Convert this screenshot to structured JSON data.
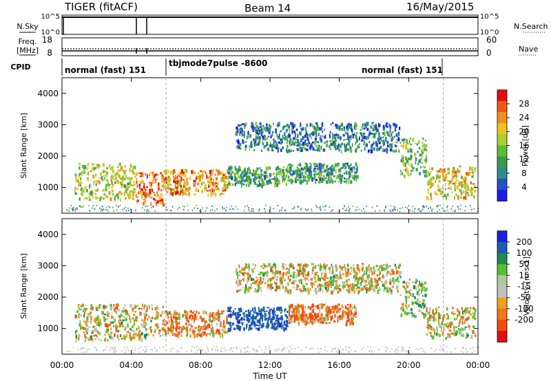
{
  "header": {
    "station": "TIGER (fitACF)",
    "beam": "Beam 14",
    "date": "16/May/2015"
  },
  "top_panels": {
    "nsky_label": "N.Sky",
    "nsky_ticks": [
      "10^5",
      "10^0"
    ],
    "nsearch_label": "N.Search",
    "nsearch_ticks": [
      "10^5",
      "10^0"
    ],
    "freq_label": "Freq.",
    "freq_unit": "[MHz]",
    "freq_ticks": [
      "18",
      "8"
    ],
    "nave_label": "Nave",
    "nave_ticks": [
      "60",
      "0"
    ],
    "cpid_label": "CPID",
    "cpid_segments": [
      {
        "label": "normal (fast) 151",
        "start_hour": 0,
        "end_hour": 6
      },
      {
        "label": "tbjmode7pulse -8600",
        "start_hour": 6,
        "end_hour": 22
      },
      {
        "label": "normal (fast) 151",
        "start_hour": 22,
        "end_hour": 24
      }
    ]
  },
  "colors": {
    "power_scale": [
      "#1e1ee6",
      "#2850c8",
      "#2e8c8c",
      "#3a9c4a",
      "#5cbb3a",
      "#a8d030",
      "#f0c020",
      "#f09020",
      "#f05a10",
      "#e01010"
    ],
    "velocity_scale": [
      "#1e1ee6",
      "#1e5ab4",
      "#1e8a50",
      "#55c030",
      "#b0c8a0",
      "#c0c0c0",
      "#f0a020",
      "#f07818",
      "#f04a10",
      "#e01010"
    ],
    "ground_scatter": "#bbbbbb"
  },
  "chart_data": [
    {
      "type": "heatmap",
      "name": "power",
      "ylabel": "Slant Range [km]",
      "yticks": [
        1000,
        2000,
        3000,
        4000
      ],
      "ylim": [
        180,
        4500
      ],
      "xlim": [
        0,
        24
      ],
      "colorbar_label": "Power [dB]",
      "colorbar_ticks": [
        4,
        8,
        12,
        16,
        20,
        24,
        28
      ],
      "colorbar_range": [
        0,
        32
      ],
      "scatter_regions": [
        {
          "t0": 0.7,
          "t1": 4.2,
          "r0": 650,
          "r1": 1800,
          "level": 18
        },
        {
          "t0": 4.2,
          "t1": 5.8,
          "r0": 500,
          "r1": 1500,
          "level": 26
        },
        {
          "t0": 5.8,
          "t1": 9.5,
          "r0": 800,
          "r1": 1600,
          "level": 24
        },
        {
          "t0": 9.5,
          "t1": 13.0,
          "r0": 1100,
          "r1": 1700,
          "level": 12
        },
        {
          "t0": 13.0,
          "t1": 17.0,
          "r0": 1200,
          "r1": 1800,
          "level": 10
        },
        {
          "t0": 10.0,
          "t1": 19.5,
          "r0": 2200,
          "r1": 3100,
          "level": 8
        },
        {
          "t0": 19.5,
          "t1": 21.0,
          "r0": 1400,
          "r1": 2600,
          "level": 14
        },
        {
          "t0": 21.0,
          "t1": 23.8,
          "r0": 700,
          "r1": 1700,
          "level": 20
        }
      ]
    },
    {
      "type": "heatmap",
      "name": "velocity",
      "ylabel": "Slant Range [km]",
      "yticks": [
        1000,
        2000,
        3000,
        4000
      ],
      "ylim": [
        180,
        4500
      ],
      "xlim": [
        0,
        24
      ],
      "colorbar_label": "Velocity [m s-1]",
      "colorbar_ticks": [
        200,
        100,
        50,
        15,
        -15,
        -50,
        -100,
        -200
      ],
      "scatter_regions": [
        {
          "t0": 0.7,
          "t1": 5.8,
          "r0": 650,
          "r1": 1800,
          "vel": 0
        },
        {
          "t0": 5.8,
          "t1": 9.5,
          "r0": 800,
          "r1": 1600,
          "vel": -30
        },
        {
          "t0": 9.5,
          "t1": 13.0,
          "r0": 1000,
          "r1": 1700,
          "vel": 150
        },
        {
          "t0": 13.0,
          "t1": 17.0,
          "r0": 1200,
          "r1": 1800,
          "vel": -40
        },
        {
          "t0": 10.0,
          "t1": 19.5,
          "r0": 2200,
          "r1": 3100,
          "vel": 0
        },
        {
          "t0": 19.5,
          "t1": 21.0,
          "r0": 1400,
          "r1": 2600,
          "vel": 30
        },
        {
          "t0": 21.0,
          "t1": 23.8,
          "r0": 700,
          "r1": 1700,
          "vel": 0
        }
      ]
    }
  ],
  "xaxis": {
    "label": "Time UT",
    "ticks": [
      "00:00",
      "04:00",
      "08:00",
      "12:00",
      "16:00",
      "20:00",
      "00:00"
    ],
    "tick_hours": [
      0,
      4,
      8,
      12,
      16,
      20,
      24
    ]
  }
}
